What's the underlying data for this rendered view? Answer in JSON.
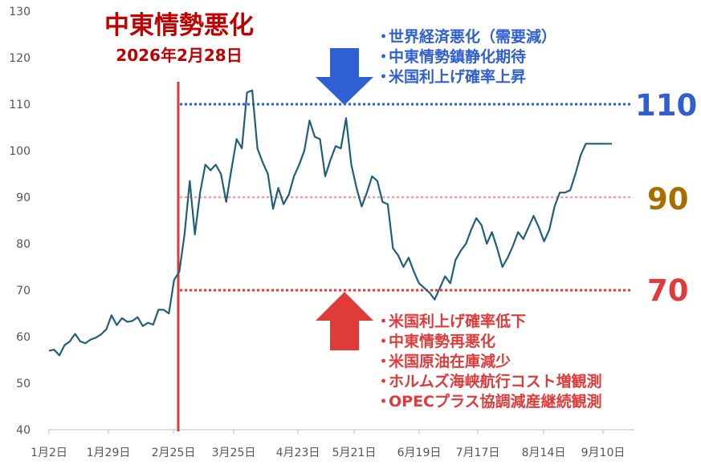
{
  "chart_data": {
    "type": "line",
    "ylim": [
      40,
      130
    ],
    "yticks": [
      40,
      50,
      60,
      70,
      80,
      90,
      100,
      110,
      120,
      130
    ],
    "xtick_labels": [
      "1月2日",
      "1月29日",
      "2月25日",
      "3月25日",
      "4月23日",
      "5月21日",
      "6月19日",
      "7月17日",
      "8月14日",
      "9月10日"
    ],
    "x": [
      "1月2日",
      "1月5日",
      "1月7日",
      "1月9日",
      "1月12日",
      "1月14日",
      "1月16日",
      "1月19日",
      "1月21日",
      "1月23日",
      "1月26日",
      "1月28日",
      "1月30日",
      "2月2日",
      "2月4日",
      "2月6日",
      "2月9日",
      "2月11日",
      "2月13日",
      "2月16日",
      "2月18日",
      "2月20日",
      "2月23日",
      "2月25日",
      "2月27日",
      "3月2日",
      "3月4日",
      "3月6日",
      "3月9日",
      "3月11日",
      "3月13日",
      "3月16日",
      "3月18日",
      "3月20日",
      "3月23日",
      "3月25日",
      "3月27日",
      "3月30日",
      "4月1日",
      "4月3日",
      "4月6日",
      "4月8日",
      "4月10日",
      "4月13日",
      "4月15日",
      "4月17日",
      "4月20日",
      "4月22日",
      "4月24日",
      "4月27日",
      "4月29日",
      "5月1日",
      "5月4日",
      "5月6日",
      "5月8日",
      "5月11日",
      "5月13日",
      "5月15日",
      "5月18日",
      "5月20日",
      "5月22日",
      "5月25日",
      "5月27日",
      "5月29日",
      "6月1日",
      "6月3日",
      "6月5日",
      "6月8日",
      "6月10日",
      "6月12日",
      "6月15日",
      "6月17日",
      "6月19日",
      "6月22日",
      "6月24日",
      "6月26日",
      "6月29日",
      "7月1日",
      "7月3日",
      "7月6日",
      "7月8日",
      "7月10日",
      "7月13日",
      "7月15日",
      "7月17日",
      "7月20日",
      "7月22日",
      "7月24日",
      "7月27日",
      "7月29日",
      "7月31日",
      "8月3日",
      "8月5日",
      "8月7日",
      "8月10日",
      "8月12日",
      "8月14日",
      "8月17日",
      "8月19日",
      "8月21日",
      "8月24日",
      "8月26日",
      "8月28日",
      "8月31日",
      "9月2日",
      "9月4日",
      "9月7日",
      "9月9日",
      "9月11日"
    ],
    "series": [
      {
        "color": "#1f5f7a",
        "values": [
          57.0,
          57.2,
          56.0,
          58.2,
          59.0,
          60.6,
          59.0,
          58.6,
          59.4,
          59.8,
          60.5,
          61.6,
          64.6,
          62.5,
          64.0,
          63.2,
          63.4,
          64.2,
          62.3,
          63.0,
          62.6,
          65.8,
          65.8,
          65.0,
          72.2,
          74.0,
          82.0,
          93.5,
          82.0,
          91.0,
          97.0,
          95.8,
          97.0,
          95.0,
          89.0,
          96.0,
          102.5,
          100.5,
          112.5,
          113.0,
          100.5,
          97.5,
          95.0,
          87.5,
          92.0,
          88.5,
          90.5,
          94.5,
          97.0,
          100.0,
          106.5,
          103.0,
          102.5,
          94.5,
          98.0,
          101.0,
          100.5,
          107.0,
          97.0,
          92.0,
          88.0,
          91.0,
          94.5,
          93.5,
          89.0,
          88.5,
          79.0,
          77.5,
          75.0,
          77.0,
          74.0,
          71.5,
          70.5,
          69.5,
          68.0,
          70.5,
          73.0,
          71.5,
          76.5,
          78.5,
          80.0,
          83.0,
          85.5,
          84.0,
          80.0,
          82.5,
          79.0,
          75.0,
          77.0,
          79.5,
          82.5,
          81.0,
          83.5,
          86.0,
          83.5,
          80.5,
          83.0,
          88.0,
          91.0,
          91.0,
          91.5,
          95.0,
          99.0,
          101.5,
          101.5,
          101.5,
          101.5,
          101.5,
          101.5
        ]
      }
    ],
    "reference_lines": [
      {
        "value": 110,
        "label": "110",
        "color": "#2f5fd0",
        "style": "dotted"
      },
      {
        "value": 90,
        "label": "90",
        "color": "#f0a0a0",
        "style": "dotted"
      },
      {
        "value": 70,
        "label": "70",
        "color": "#e03b3b",
        "style": "dotted"
      }
    ],
    "event_line": {
      "date": "2月28日",
      "color": "#e03b3b"
    },
    "grid": false,
    "legend": "none"
  },
  "annotations": {
    "event_title": "中東情勢悪化",
    "event_date": "2026年2月28日",
    "bearish_factors": [
      "世界経済悪化（需要減）",
      "中東情勢鎮静化期待",
      "米国利上げ確率上昇"
    ],
    "bullish_factors": [
      "米国利上げ確率低下",
      "中東情勢再悪化",
      "米国原油在庫減少",
      "ホルムズ海峡航行コスト増観測",
      "OPECプラス協調減産継続観測"
    ],
    "bullet": "・",
    "level_110": "110",
    "level_90": "90",
    "level_70": "70",
    "colors": {
      "bearish": "#2f5fd0",
      "bullish": "#e03b3b",
      "neutral_level": "#a66d00",
      "event": "#c00000"
    }
  }
}
